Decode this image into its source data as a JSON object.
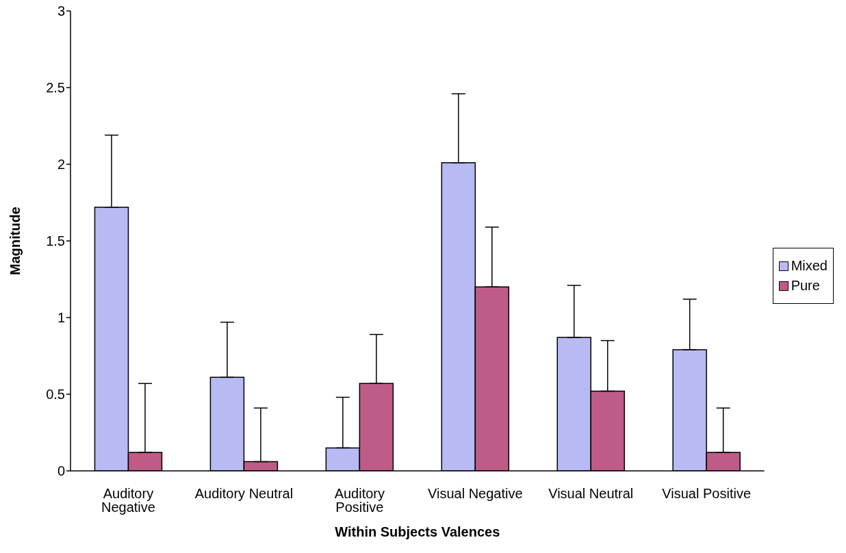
{
  "chart_data": {
    "type": "bar",
    "xlabel": "Within Subjects Valences",
    "ylabel": "Magnitude",
    "categories": [
      "Auditory Negative",
      "Auditory Neutral",
      "Auditory Positive",
      "Visual Negative",
      "Visual Neutral",
      "Visual Positive"
    ],
    "series": [
      {
        "name": "Mixed",
        "color": "#b8baf4",
        "values": [
          1.72,
          0.61,
          0.15,
          2.01,
          0.87,
          0.79
        ],
        "errors": [
          [
            1.72,
            2.19
          ],
          [
            0.61,
            0.97
          ],
          [
            0.15,
            0.48
          ],
          [
            2.01,
            2.46
          ],
          [
            0.87,
            1.21
          ],
          [
            0.79,
            1.12
          ]
        ]
      },
      {
        "name": "Pure",
        "color": "#be5c87",
        "values": [
          0.12,
          0.06,
          0.57,
          1.2,
          0.52,
          0.12
        ],
        "errors": [
          [
            0.12,
            0.57
          ],
          [
            0.06,
            0.41
          ],
          [
            0.57,
            0.89
          ],
          [
            1.2,
            1.59
          ],
          [
            0.52,
            0.85
          ],
          [
            0.12,
            0.41
          ]
        ]
      }
    ],
    "ylim": [
      0,
      3
    ],
    "yticks": [
      0,
      0.5,
      1,
      1.5,
      2,
      2.5,
      3
    ],
    "grid": false,
    "legend": "right"
  }
}
